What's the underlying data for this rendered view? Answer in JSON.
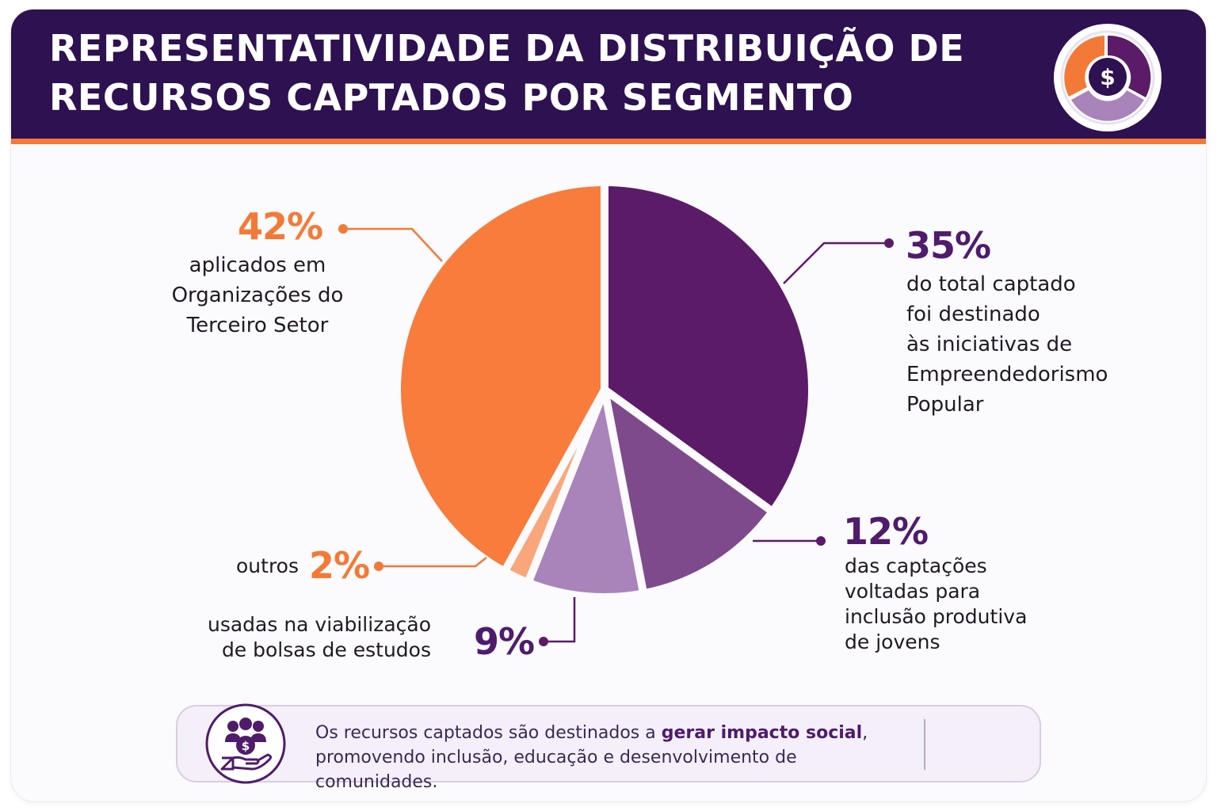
{
  "header": {
    "title_line1": "REPRESENTATIVIDADE DA DISTRIBUIÇÃO DE",
    "title_line2": "RECURSOS CAPTADOS POR SEGMENTO",
    "icon": "donut-dollar-icon"
  },
  "chart_data": {
    "type": "pie",
    "title": "REPRESENTATIVIDADE DA DISTRIBUIÇÃO DE RECURSOS CAPTADOS POR SEGMENTO",
    "slices": [
      {
        "value": 35,
        "label": "35%",
        "color": "#5b1b68",
        "desc": [
          "do total captado",
          "foi destinado",
          "às iniciativas de",
          "Empreendedorismo",
          "Popular"
        ]
      },
      {
        "value": 12,
        "label": "12%",
        "color": "#7e4a8c",
        "desc": [
          "das captações",
          "voltadas para",
          "inclusão produtiva",
          "de jovens"
        ]
      },
      {
        "value": 9,
        "label": "9%",
        "color": "#a884bb",
        "desc": [
          "usadas na viabilização",
          "de bolsas de estudos"
        ]
      },
      {
        "value": 2,
        "label": "2%",
        "color": "#f9a77a",
        "desc": [
          "outros"
        ]
      },
      {
        "value": 42,
        "label": "42%",
        "color": "#f87c3c",
        "desc": [
          "aplicados em",
          "Organizações do",
          "Terceiro Setor"
        ]
      }
    ],
    "legend": "callouts"
  },
  "footer": {
    "text_before": "Os recursos captados são destinados a ",
    "text_bold": "gerar impacto social",
    "text_after": ",",
    "text_line2": "promovendo inclusão, educação e desenvolvimento de comunidades.",
    "icon": "people-hand-money-icon"
  },
  "colors": {
    "header_bg": "#2e1150",
    "accent_orange": "#f37a36",
    "accent_purple": "#4f1b6b"
  }
}
